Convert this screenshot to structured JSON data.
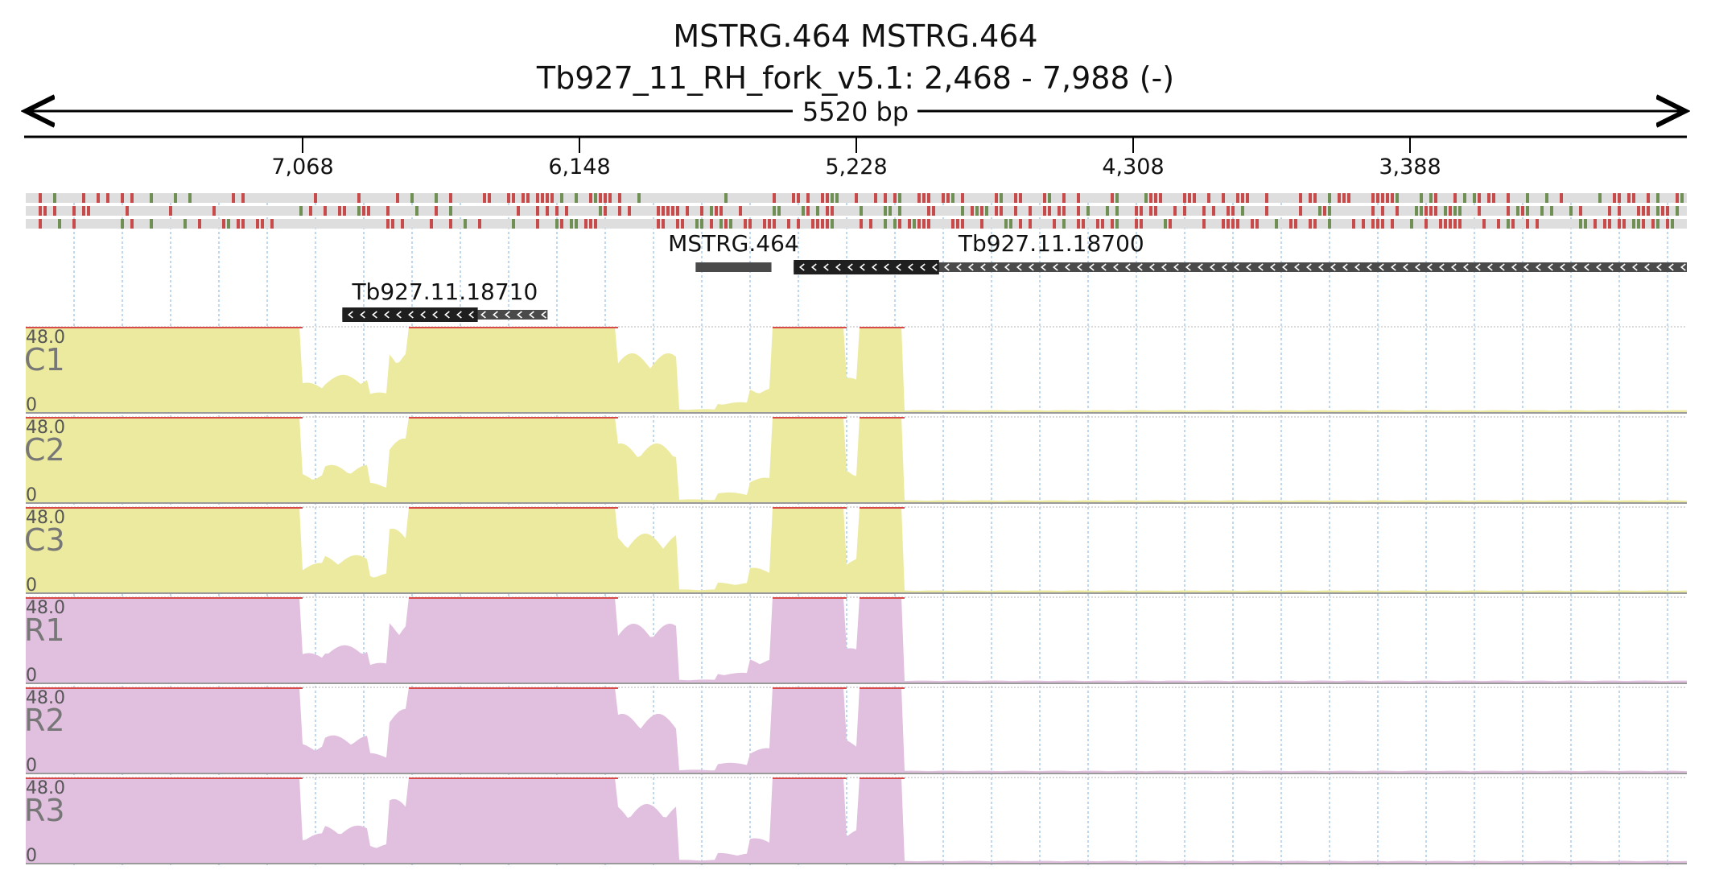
{
  "header": {
    "title": "MSTRG.464  MSTRG.464",
    "locus": "Tb927_11_RH_fork_v5.1: 2,468 - 7,988 (-)",
    "span": "5520 bp"
  },
  "ruler": {
    "start": 2468,
    "end": 7988,
    "strand": "-",
    "ticks": [
      "7,068",
      "6,148",
      "5,228",
      "4,308",
      "3,388"
    ],
    "tick_positions": [
      7068,
      6148,
      5228,
      4308,
      3388
    ]
  },
  "features": [
    {
      "label": "MSTRG.464",
      "start": 5762,
      "end": 5510,
      "type": "transcript",
      "orientation": "none"
    },
    {
      "label": "Tb927.11.18700",
      "start": 5436,
      "end": 2468,
      "coding_start": 5436,
      "coding_end": 4953,
      "type": "gene",
      "orientation": "reverse"
    },
    {
      "label": "Tb927.11.18710",
      "start": 6936,
      "end": 6254,
      "coding_start": 6936,
      "coding_end": 6486,
      "type": "gene",
      "orientation": "reverse"
    }
  ],
  "tracks": [
    {
      "label": "C1",
      "max": "48.0",
      "min": "0",
      "color": "#ecea9f"
    },
    {
      "label": "C2",
      "max": "48.0",
      "min": "0",
      "color": "#ecea9f"
    },
    {
      "label": "C3",
      "max": "48.0",
      "min": "0",
      "color": "#ecea9f"
    },
    {
      "label": "R1",
      "max": "48.0",
      "min": "0",
      "color": "#e1bfdf"
    },
    {
      "label": "R2",
      "max": "48.0",
      "min": "0",
      "color": "#e1bfdf"
    },
    {
      "label": "R3",
      "max": "48.0",
      "min": "0",
      "color": "#e1bfdf"
    }
  ],
  "coverage_profile": [
    {
      "from": 7988,
      "to": 7068,
      "level": 1.0
    },
    {
      "from": 7068,
      "to": 6996,
      "level": 0.3
    },
    {
      "from": 6996,
      "to": 6848,
      "level": 0.38
    },
    {
      "from": 6848,
      "to": 6780,
      "level": 0.2
    },
    {
      "from": 6780,
      "to": 6720,
      "level": 0.65
    },
    {
      "from": 6720,
      "to": 6030,
      "level": 1.0
    },
    {
      "from": 6030,
      "to": 5825,
      "level": 0.6
    },
    {
      "from": 5825,
      "to": 5690,
      "level": 0.03
    },
    {
      "from": 5690,
      "to": 5590,
      "level": 0.1
    },
    {
      "from": 5590,
      "to": 5510,
      "level": 0.25
    },
    {
      "from": 5510,
      "to": 5270,
      "level": 1.0
    },
    {
      "from": 5270,
      "to": 5220,
      "level": 0.35
    },
    {
      "from": 5220,
      "to": 5070,
      "level": 1.0
    },
    {
      "from": 5070,
      "to": 2468,
      "level": 0.02
    }
  ],
  "colors": {
    "coverage_clip": "#d94a4a",
    "gene_block": "#1f1f1f",
    "gene_line": "#4a4a4a",
    "variant_red": "#c74b4b",
    "variant_green": "#6f8f55",
    "grid": "#9cc3e6"
  }
}
